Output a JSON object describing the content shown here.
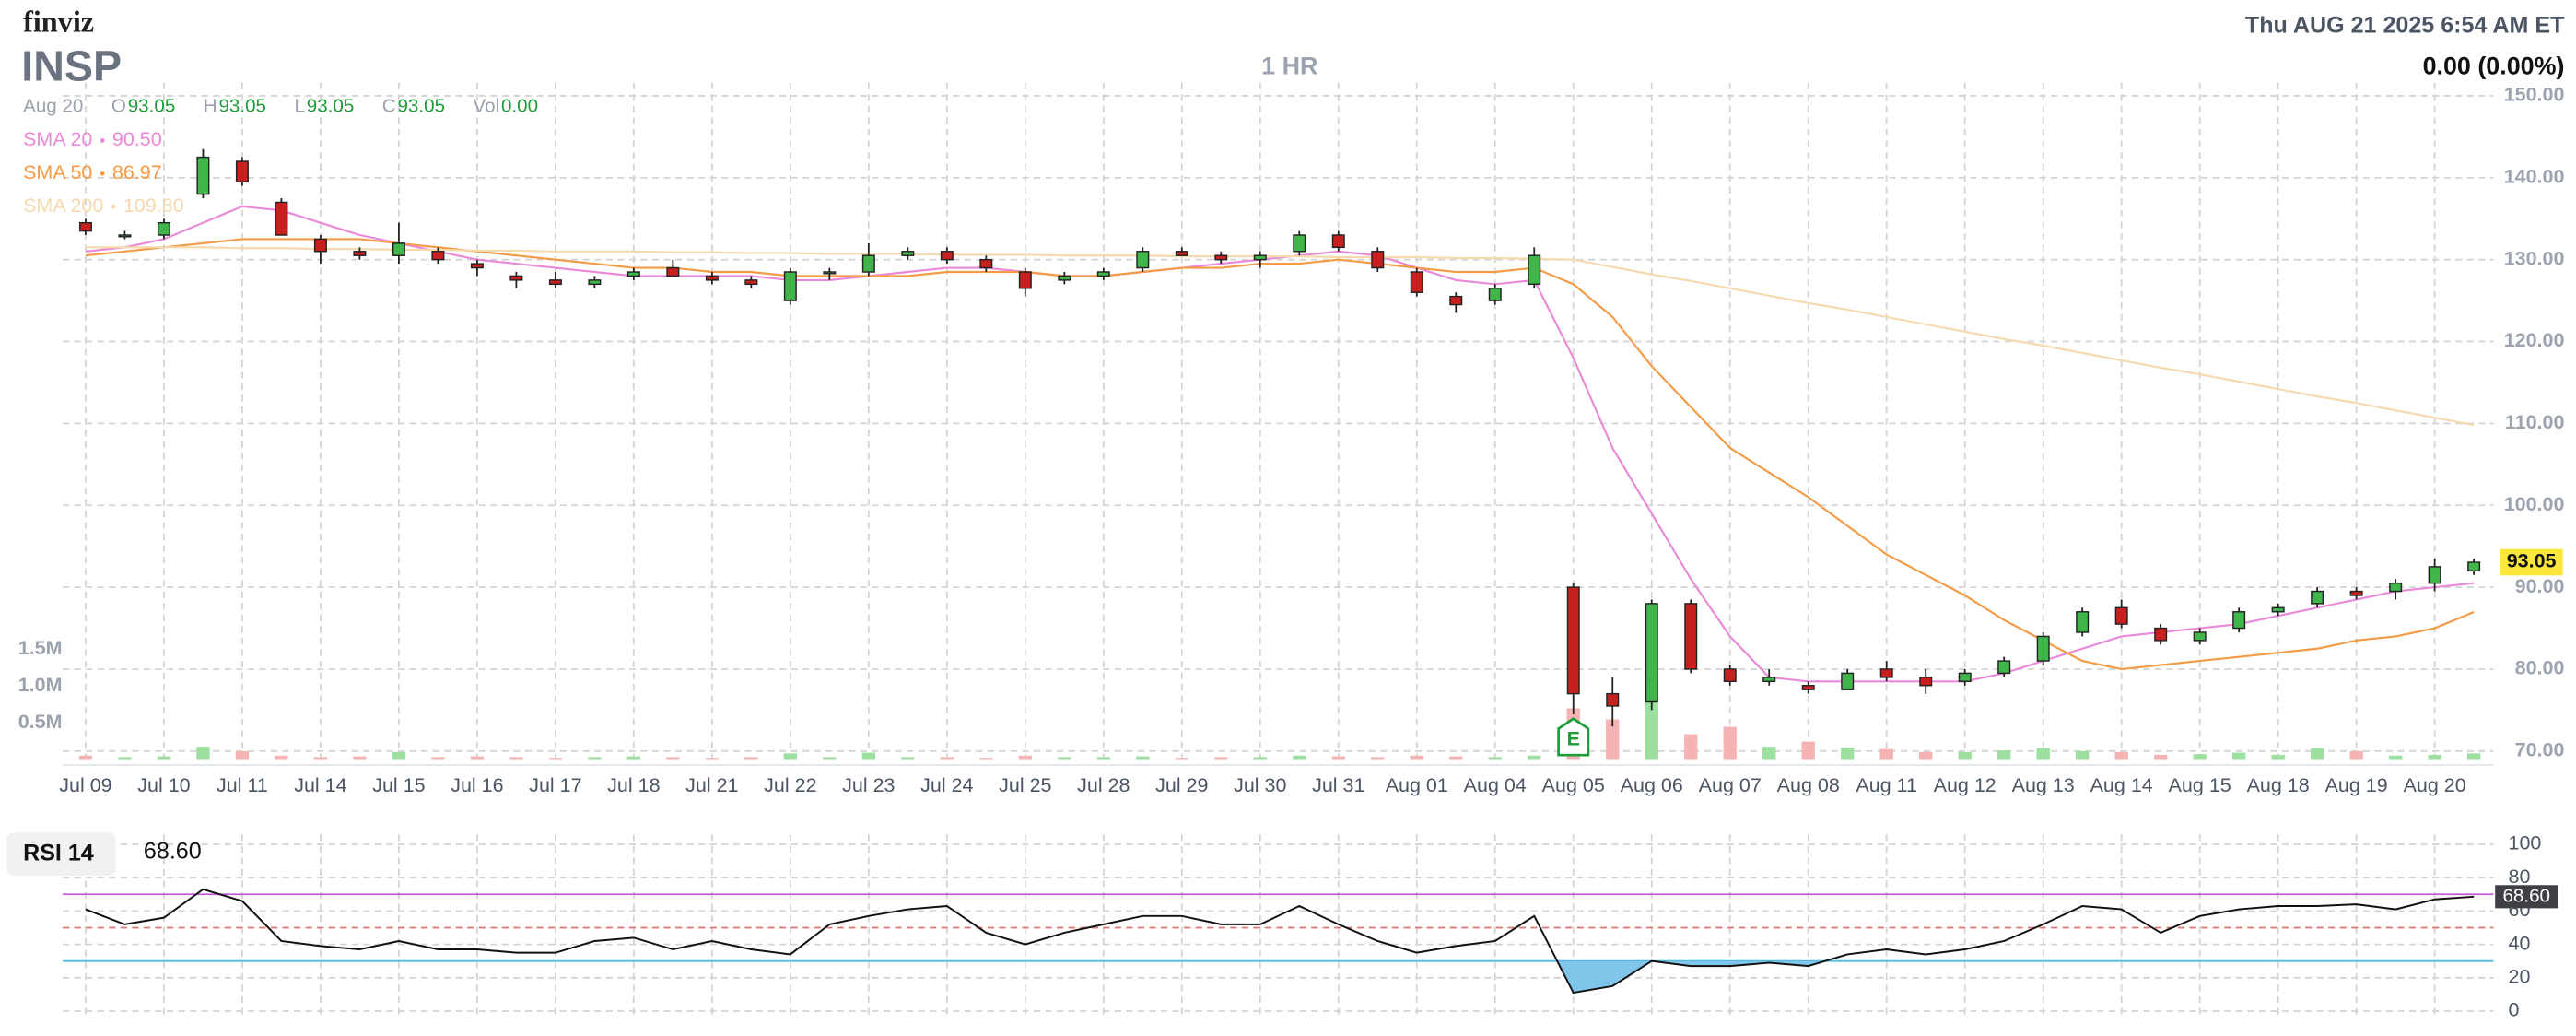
{
  "header": {
    "logo": "finviz",
    "ticker": "INSP",
    "interval": "1 HR",
    "datetime": "Thu AUG 21 2025 6:54 AM ET",
    "change": "0.00 (0.00%)"
  },
  "chart_data": [
    {
      "type": "candlestick",
      "ohlc_legend": {
        "date": "Aug 20",
        "items": [
          {
            "label": "O",
            "value": "93.05"
          },
          {
            "label": "H",
            "value": "93.05"
          },
          {
            "label": "L",
            "value": "93.05"
          },
          {
            "label": "C",
            "value": "93.05"
          },
          {
            "label": "Vol",
            "value": "0.00"
          }
        ]
      },
      "categories": [
        "Jul 09",
        null,
        "Jul 10",
        null,
        "Jul 11",
        null,
        "Jul 14",
        null,
        "Jul 15",
        null,
        "Jul 16",
        null,
        "Jul 17",
        null,
        "Jul 18",
        null,
        "Jul 21",
        null,
        "Jul 22",
        null,
        "Jul 23",
        null,
        "Jul 24",
        null,
        "Jul 25",
        null,
        "Jul 28",
        null,
        "Jul 29",
        null,
        "Jul 30",
        null,
        "Jul 31",
        null,
        "Aug 01",
        null,
        "Aug 04",
        null,
        "Aug 05",
        null,
        "Aug 06",
        null,
        "Aug 07",
        null,
        "Aug 08",
        null,
        "Aug 11",
        null,
        "Aug 12",
        null,
        "Aug 13",
        null,
        "Aug 14",
        null,
        "Aug 15",
        null,
        "Aug 18",
        null,
        "Aug 19",
        null,
        "Aug 20",
        null
      ],
      "open": [
        134.5,
        133,
        133,
        138,
        142,
        137,
        132.5,
        131,
        130.5,
        131,
        129.5,
        128,
        127.5,
        127,
        128,
        129,
        128,
        127.5,
        125,
        128.5,
        128.5,
        130.5,
        131,
        130,
        128.5,
        127.5,
        128,
        129,
        131,
        130.5,
        130,
        131,
        133,
        131,
        128.5,
        125.5,
        125,
        127,
        90,
        77,
        76,
        88,
        80,
        78.5,
        78,
        77.5,
        80,
        79,
        78.5,
        79.5,
        81,
        84.5,
        87.5,
        85,
        83.5,
        85,
        87,
        88,
        89.5,
        89.5,
        90.5,
        92
      ],
      "high": [
        135,
        133.5,
        135,
        143.5,
        142.5,
        137.5,
        133,
        131.5,
        134.5,
        131.5,
        130,
        128.5,
        128.5,
        128,
        129,
        130,
        128.5,
        128,
        129,
        129,
        132,
        131.5,
        131.5,
        130.5,
        129,
        128.5,
        129,
        131.5,
        131.5,
        131,
        131,
        133.5,
        133.5,
        131.5,
        129,
        126,
        127,
        131.5,
        90.5,
        79,
        88.5,
        88.5,
        80.5,
        80,
        78.5,
        80,
        81,
        80,
        80,
        81.5,
        84.5,
        87.5,
        88.5,
        85.5,
        85,
        87.5,
        88,
        90,
        90,
        91,
        93.5,
        93.5
      ],
      "low": [
        133,
        132.5,
        132.5,
        137.5,
        139,
        133,
        129.5,
        130,
        129.5,
        129.5,
        128,
        126.5,
        126.5,
        126.5,
        127.5,
        128,
        127,
        126.5,
        124.5,
        127.5,
        128,
        130,
        129.5,
        128.5,
        125.5,
        127,
        127.5,
        128.5,
        130.5,
        129.5,
        129,
        130.5,
        131,
        128.5,
        125.5,
        123.5,
        124.5,
        126.5,
        74.5,
        73,
        75,
        79.5,
        78,
        78,
        77,
        77.5,
        78.5,
        77,
        78,
        79,
        80.5,
        84,
        85,
        83,
        83,
        84.5,
        86.5,
        87.5,
        88.5,
        88.5,
        89.5,
        91.5
      ],
      "close": [
        133.5,
        133,
        134.5,
        142.5,
        139.5,
        133,
        131,
        130.5,
        132,
        130,
        129,
        127.5,
        127,
        127.5,
        128.5,
        128,
        127.5,
        127,
        128.5,
        128.5,
        130.5,
        131,
        130,
        129,
        126.5,
        128,
        128.5,
        131,
        130.5,
        130,
        130.5,
        133,
        131.5,
        129,
        126,
        124.5,
        126.5,
        130.5,
        77,
        75.5,
        88,
        80,
        78.5,
        79,
        77.5,
        79.5,
        79,
        78,
        79.5,
        81,
        84,
        87,
        85.5,
        83.5,
        84.5,
        87,
        87.5,
        89.5,
        89,
        90.5,
        92.5,
        93.05
      ],
      "up_color": "#3fb54a",
      "down_color": "#c8201f",
      "volume_up_color": "#9ddf9f",
      "volume_down_color": "#f5b3b3",
      "volume": [
        60000,
        40000,
        50000,
        180000,
        120000,
        60000,
        40000,
        50000,
        110000,
        40000,
        50000,
        40000,
        30000,
        40000,
        50000,
        40000,
        30000,
        40000,
        90000,
        40000,
        100000,
        40000,
        40000,
        30000,
        60000,
        40000,
        40000,
        50000,
        30000,
        40000,
        40000,
        60000,
        50000,
        40000,
        60000,
        50000,
        40000,
        60000,
        700000,
        550000,
        1050000,
        350000,
        450000,
        180000,
        250000,
        170000,
        150000,
        110000,
        110000,
        130000,
        160000,
        120000,
        110000,
        70000,
        80000,
        100000,
        70000,
        160000,
        120000,
        60000,
        70000,
        90000
      ],
      "volume_ylim": [
        0,
        1500000
      ],
      "volume_ticks": [
        {
          "value": 500000,
          "label": "0.5M"
        },
        {
          "value": 1000000,
          "label": "1.0M"
        },
        {
          "value": 1500000,
          "label": "1.5M"
        }
      ],
      "series": [
        {
          "name": "SMA 20",
          "color": "#e98ad9",
          "value_label": "90.50",
          "values": [
            131,
            131.5,
            132.5,
            134.5,
            136.5,
            136,
            134.5,
            133,
            132,
            131,
            130,
            129.5,
            129,
            128.5,
            128,
            128,
            128,
            128,
            127.5,
            127.5,
            128,
            128.5,
            129,
            129,
            128.5,
            128,
            128,
            128.5,
            129,
            129.5,
            130,
            130.5,
            131,
            130.5,
            129,
            127.5,
            127,
            127.5,
            118,
            107,
            99,
            91,
            84,
            79,
            78.5,
            78.5,
            78.5,
            78.5,
            78.5,
            79.5,
            81,
            82.5,
            84,
            84.5,
            85,
            85.5,
            86.5,
            87.5,
            88.5,
            89.5,
            90,
            90.5
          ]
        },
        {
          "name": "SMA 50",
          "color": "#f59a45",
          "value_label": "86.97",
          "values": [
            130.5,
            131,
            131.5,
            132,
            132.5,
            132.5,
            132.5,
            132.5,
            132,
            131.5,
            131,
            130.5,
            130,
            129.5,
            129,
            129,
            128.5,
            128.5,
            128,
            128,
            128,
            128,
            128.5,
            128.5,
            128.5,
            128,
            128,
            128.5,
            129,
            129,
            129.5,
            129.5,
            130,
            129.5,
            129,
            128.5,
            128.5,
            129,
            127,
            123,
            117,
            112,
            107,
            104,
            101,
            97.5,
            94,
            91.5,
            89,
            86,
            83.5,
            81,
            80,
            80.5,
            81,
            81.5,
            82,
            82.5,
            83.5,
            84,
            85,
            86.97
          ]
        },
        {
          "name": "SMA 200",
          "color": "#f6d9ad",
          "value_label": "109.80",
          "values": [
            131.5,
            131.5,
            131.5,
            131.5,
            131.4,
            131.4,
            131.3,
            131.3,
            131.2,
            131.2,
            131.1,
            131.1,
            131,
            131,
            131,
            130.9,
            130.9,
            130.8,
            130.8,
            130.7,
            130.7,
            130.7,
            130.6,
            130.6,
            130.6,
            130.5,
            130.5,
            130.5,
            130.4,
            130.4,
            130.4,
            130.4,
            130.3,
            130.3,
            130.3,
            130.2,
            130.2,
            130.1,
            130,
            129.1,
            128.2,
            127.4,
            126.5,
            125.6,
            124.7,
            123.9,
            123,
            122.1,
            121.2,
            120.3,
            119.5,
            118.6,
            117.7,
            116.8,
            116,
            115.1,
            114.2,
            113.3,
            112.5,
            111.6,
            110.7,
            109.8
          ]
        }
      ],
      "ylim": [
        68.5,
        151.5
      ],
      "yticks": [
        {
          "value": 70,
          "label": "70.00"
        },
        {
          "value": 80,
          "label": "80.00"
        },
        {
          "value": 90,
          "label": "90.00"
        },
        {
          "value": 100,
          "label": "100.00"
        },
        {
          "value": 110,
          "label": "110.00"
        },
        {
          "value": 120,
          "label": "120.00"
        },
        {
          "value": 130,
          "label": "130.00"
        },
        {
          "value": 140,
          "label": "140.00"
        },
        {
          "value": 150,
          "label": "150.00"
        }
      ],
      "grid": true,
      "last_price": {
        "value": 93.05,
        "label": "93.05"
      },
      "annotations": [
        {
          "text": "E",
          "category": "Aug 05",
          "color": "#1f9d3a"
        }
      ]
    },
    {
      "type": "line",
      "title": "RSI 14",
      "value_label": "68.60",
      "series": [
        {
          "name": "RSI 14",
          "color": "#111111",
          "values": [
            61,
            52,
            56,
            73,
            66,
            42,
            39,
            37,
            42,
            37,
            37,
            35,
            35,
            42,
            44,
            37,
            42,
            37,
            34,
            52,
            57,
            61,
            63,
            47,
            40,
            47,
            52,
            57,
            57,
            52,
            52,
            63,
            52,
            42,
            35,
            39,
            42,
            57,
            11,
            15,
            30,
            27,
            27,
            29,
            27,
            34,
            37,
            34,
            37,
            42,
            52,
            63,
            61,
            47,
            57,
            61,
            63,
            63,
            64,
            61,
            67,
            68.6
          ]
        }
      ],
      "levels": [
        {
          "value": 70,
          "color": "#c05ad6"
        },
        {
          "value": 50,
          "color": "#e57373"
        },
        {
          "value": 30,
          "color": "#4fb8e0"
        }
      ],
      "oversold_fill": "#7fc6ea",
      "ylim": [
        0,
        100
      ],
      "yticks": [
        0,
        20,
        40,
        60,
        80,
        100
      ],
      "grid": true
    }
  ]
}
